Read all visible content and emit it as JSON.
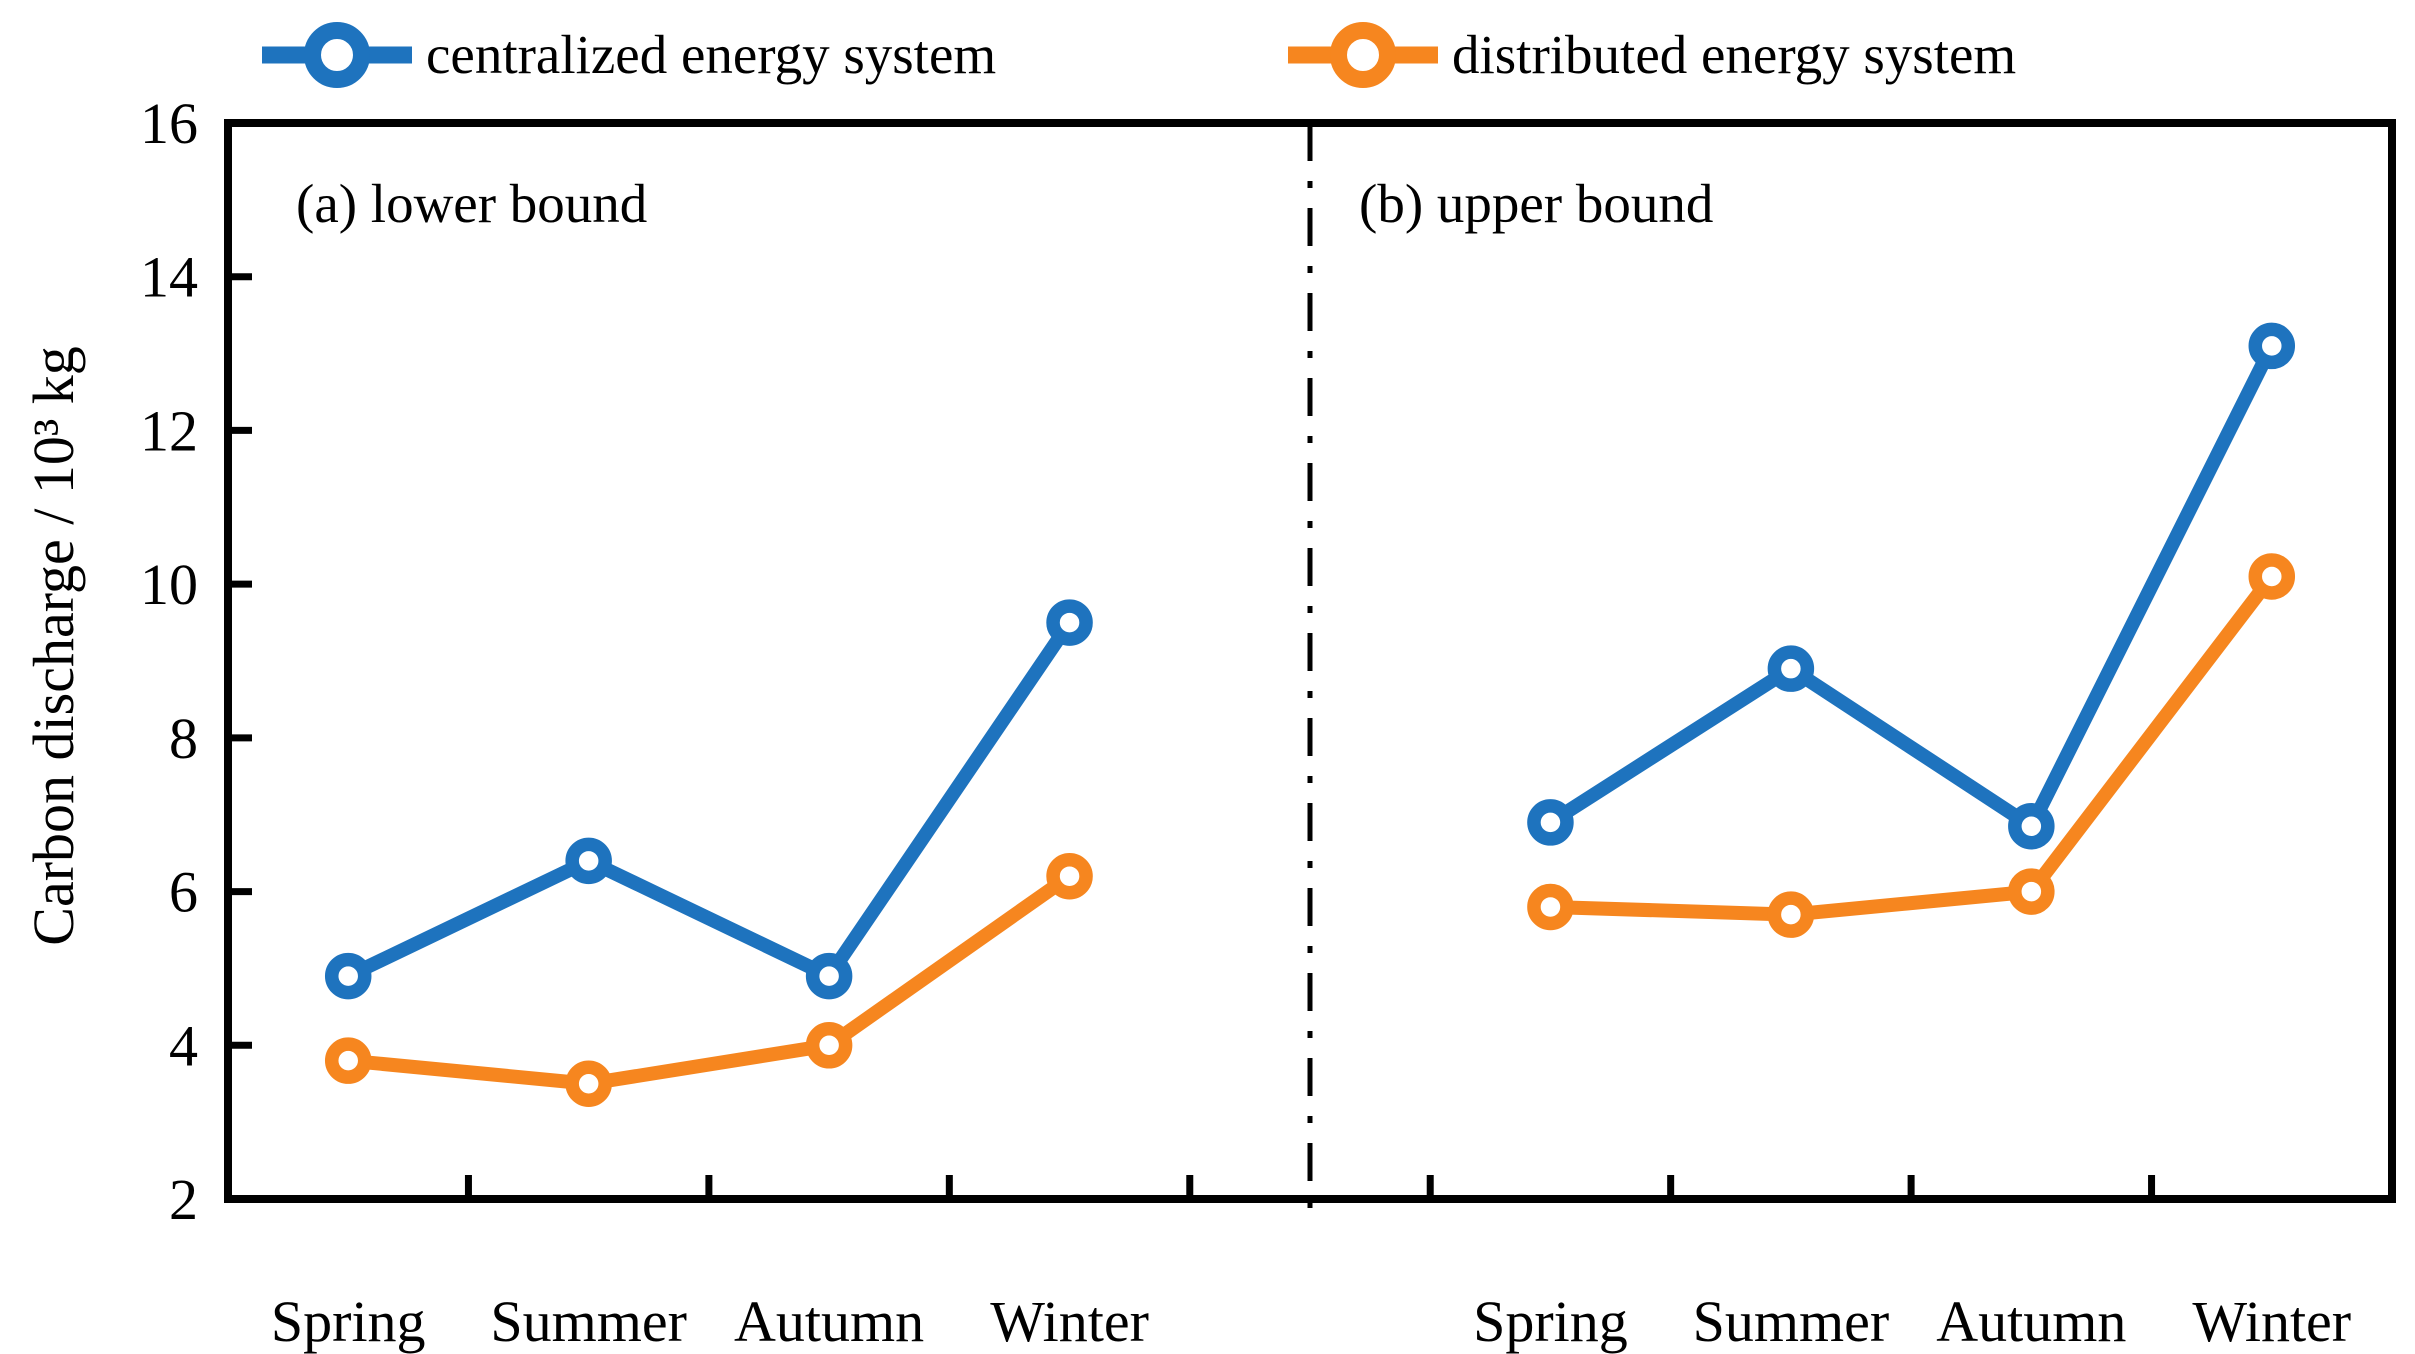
{
  "legend": {
    "items": [
      {
        "label": "centralized energy system",
        "color": "#1e73be"
      },
      {
        "label": "distributed energy system",
        "color": "#f6861f"
      }
    ]
  },
  "y_axis": {
    "label": "Carbon discharge / 10³ kg",
    "min": 2,
    "max": 16,
    "ticks": [
      2,
      4,
      6,
      8,
      10,
      12,
      14,
      16
    ]
  },
  "chart_data": [
    {
      "type": "line",
      "title": "(a) lower bound",
      "categories": [
        "Spring",
        "Summer",
        "Autumn",
        "Winter"
      ],
      "series": [
        {
          "name": "centralized energy system",
          "color": "#1e73be",
          "values": [
            4.9,
            6.4,
            4.9,
            9.5
          ]
        },
        {
          "name": "distributed energy system",
          "color": "#f6861f",
          "values": [
            3.8,
            3.5,
            4.0,
            6.2
          ]
        }
      ],
      "xlabel": "",
      "ylabel": "Carbon discharge / 10³ kg",
      "ylim": [
        2,
        16
      ],
      "grid": false,
      "legend_position": "top"
    },
    {
      "type": "line",
      "title": "(b) upper bound",
      "categories": [
        "Spring",
        "Summer",
        "Autumn",
        "Winter"
      ],
      "series": [
        {
          "name": "centralized energy system",
          "color": "#1e73be",
          "values": [
            6.9,
            8.9,
            6.85,
            13.1
          ]
        },
        {
          "name": "distributed energy system",
          "color": "#f6861f",
          "values": [
            5.8,
            5.7,
            6.0,
            10.1
          ]
        }
      ],
      "xlabel": "",
      "ylabel": "Carbon discharge / 10³ kg",
      "ylim": [
        2,
        16
      ],
      "grid": false,
      "legend_position": "top"
    }
  ]
}
